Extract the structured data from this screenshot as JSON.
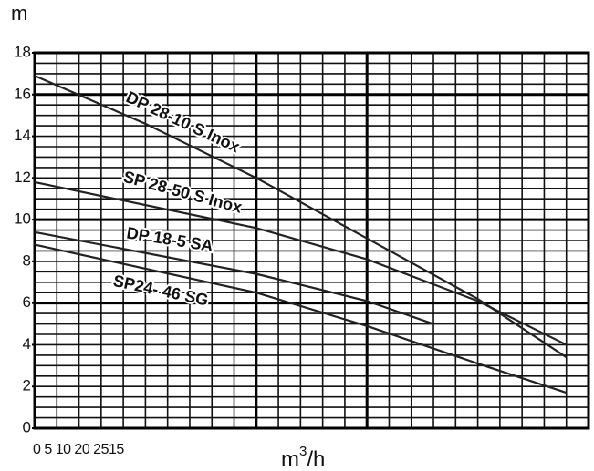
{
  "chart_data": {
    "type": "line",
    "y_label": "m",
    "x_label": {
      "base": "m",
      "sup": "3",
      "rest": "/h"
    },
    "x_tick_text": "0 5 10 20 2515",
    "xlim": [
      0,
      25
    ],
    "ylim": [
      0,
      18
    ],
    "yticks": [
      0,
      2,
      4,
      6,
      8,
      10,
      12,
      14,
      16,
      18
    ],
    "major_x": [
      10,
      15
    ],
    "major_y": [
      6,
      10,
      16
    ],
    "grid": true,
    "series": [
      {
        "name": "DP 28-10 S Inox",
        "color": "#222222",
        "x": [
          0,
          5,
          10,
          15,
          20,
          24
        ],
        "values": [
          16.9,
          14.6,
          12.0,
          9.1,
          6.2,
          3.4
        ]
      },
      {
        "name": "SP 28-50 S Inox",
        "color": "#222222",
        "x": [
          0,
          10,
          15,
          20,
          24
        ],
        "values": [
          11.8,
          9.6,
          8.1,
          6.1,
          4.0
        ]
      },
      {
        "name": "DP 18-5 SA",
        "color": "#222222",
        "x": [
          0,
          10,
          15,
          18
        ],
        "values": [
          9.4,
          7.4,
          6.1,
          5.0
        ]
      },
      {
        "name": "SP24- 46 SG",
        "color": "#222222",
        "x": [
          0,
          10,
          15,
          20,
          24
        ],
        "values": [
          8.8,
          6.5,
          4.9,
          3.1,
          1.7
        ]
      }
    ]
  }
}
